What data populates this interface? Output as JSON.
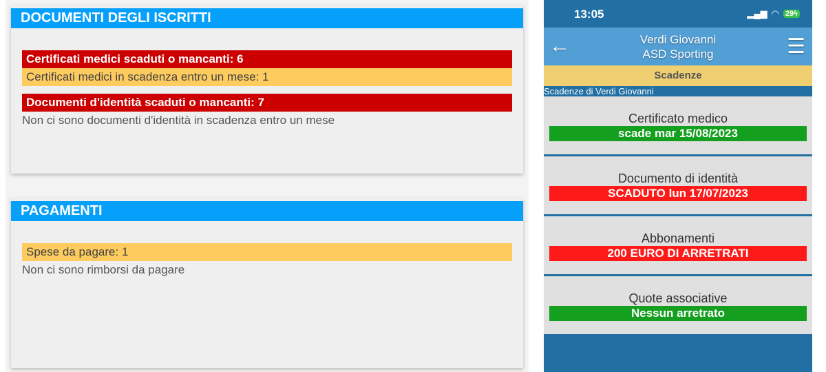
{
  "documenti": {
    "title": "DOCUMENTI DEGLI ISCRITTI",
    "rows": [
      "Certificati medici scaduti o mancanti: 6",
      "Certificati medici in scadenza entro un mese: 1",
      "Documenti d'identità scaduti o mancanti: 7",
      "Non ci sono documenti d'identità in scadenza entro un mese"
    ]
  },
  "pagamenti": {
    "title": "PAGAMENTI",
    "rows": [
      "Spese da pagare: 1",
      "Non ci sono rimborsi da pagare"
    ]
  },
  "phone": {
    "time": "13:05",
    "battery": "29",
    "title_line1": "Verdi Giovanni",
    "title_line2": "ASD Sporting",
    "section": "Scadenze",
    "subtitle": "Scadenze di Verdi Giovanni",
    "items": [
      {
        "label": "Certificato medico",
        "value": "scade mar 15/08/2023",
        "status": "ok"
      },
      {
        "label": "Documento di identità",
        "value": "SCADUTO lun 17/07/2023",
        "status": "expired"
      },
      {
        "label": "Abbonamenti",
        "value": "200 EURO DI ARRETRATI",
        "status": "expired"
      },
      {
        "label": "Quote associative",
        "value": "Nessun arretrato",
        "status": "ok"
      }
    ]
  },
  "colors": {
    "header_blue": "#06a0fa",
    "alert_red": "#cc0000",
    "warning_yellow": "#fecb5e",
    "ok_green": "#14a01e",
    "phone_red": "#ff1a1a"
  }
}
